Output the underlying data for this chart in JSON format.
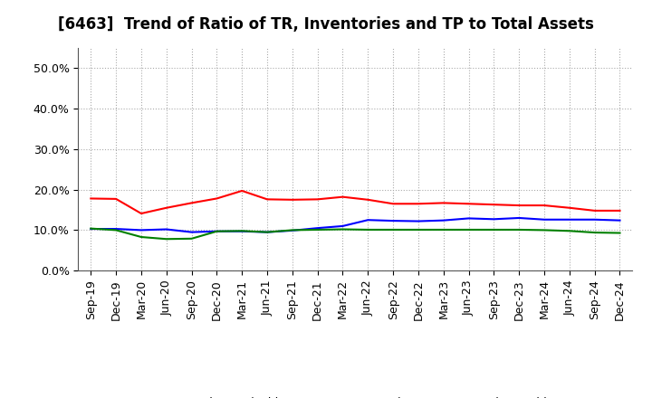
{
  "title": "[6463]  Trend of Ratio of TR, Inventories and TP to Total Assets",
  "x_labels": [
    "Sep-19",
    "Dec-19",
    "Mar-20",
    "Jun-20",
    "Sep-20",
    "Dec-20",
    "Mar-21",
    "Jun-21",
    "Sep-21",
    "Dec-21",
    "Mar-22",
    "Jun-22",
    "Sep-22",
    "Dec-22",
    "Mar-23",
    "Jun-23",
    "Sep-23",
    "Dec-23",
    "Mar-24",
    "Jun-24",
    "Sep-24",
    "Dec-24"
  ],
  "trade_receivables": [
    0.178,
    0.177,
    0.141,
    0.155,
    0.167,
    0.178,
    0.197,
    0.176,
    0.175,
    0.176,
    0.182,
    0.175,
    0.165,
    0.165,
    0.167,
    0.165,
    0.163,
    0.161,
    0.161,
    0.155,
    0.148,
    0.148
  ],
  "inventories": [
    0.103,
    0.103,
    0.1,
    0.102,
    0.095,
    0.097,
    0.097,
    0.095,
    0.099,
    0.105,
    0.11,
    0.125,
    0.123,
    0.122,
    0.124,
    0.129,
    0.127,
    0.13,
    0.126,
    0.126,
    0.126,
    0.124
  ],
  "trade_payables": [
    0.104,
    0.1,
    0.083,
    0.078,
    0.079,
    0.097,
    0.098,
    0.095,
    0.1,
    0.101,
    0.102,
    0.101,
    0.101,
    0.101,
    0.101,
    0.101,
    0.101,
    0.101,
    0.1,
    0.098,
    0.094,
    0.093
  ],
  "tr_color": "#ff0000",
  "inv_color": "#0000ff",
  "tp_color": "#008000",
  "ylim": [
    0.0,
    0.55
  ],
  "yticks": [
    0.0,
    0.1,
    0.2,
    0.3,
    0.4,
    0.5
  ],
  "background_color": "#ffffff",
  "grid_color": "#aaaaaa",
  "title_fontsize": 12,
  "tick_fontsize": 9,
  "legend_fontsize": 9
}
